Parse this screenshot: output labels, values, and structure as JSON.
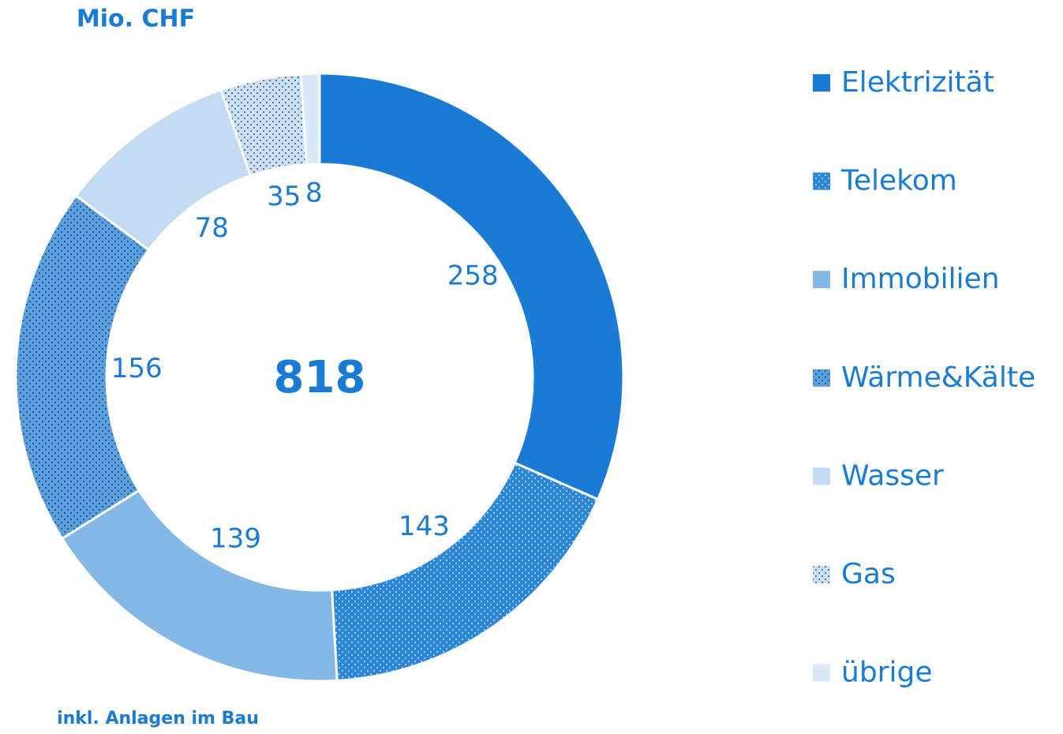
{
  "chart_data": {
    "type": "donut",
    "title": "Mio. CHF",
    "center_label": "818",
    "footnote": "inkl. Anlagen im Bau",
    "categories": [
      "Elektrizität",
      "Telekom",
      "Immobilien",
      "Wärme&Kälte",
      "Wasser",
      "Gas",
      "übrige"
    ],
    "values": [
      258,
      143,
      139,
      156,
      78,
      35,
      8
    ],
    "colors": [
      "#1a7bd4",
      "#2b86dc",
      "#85b8e6",
      "#5a9fe0",
      "#c3dcf3",
      "#c7dff5",
      "#d9e9f8"
    ],
    "patterns": [
      null,
      "light-dots",
      null,
      "dark-dots",
      null,
      "dark-dots",
      null
    ],
    "legend": "right"
  }
}
